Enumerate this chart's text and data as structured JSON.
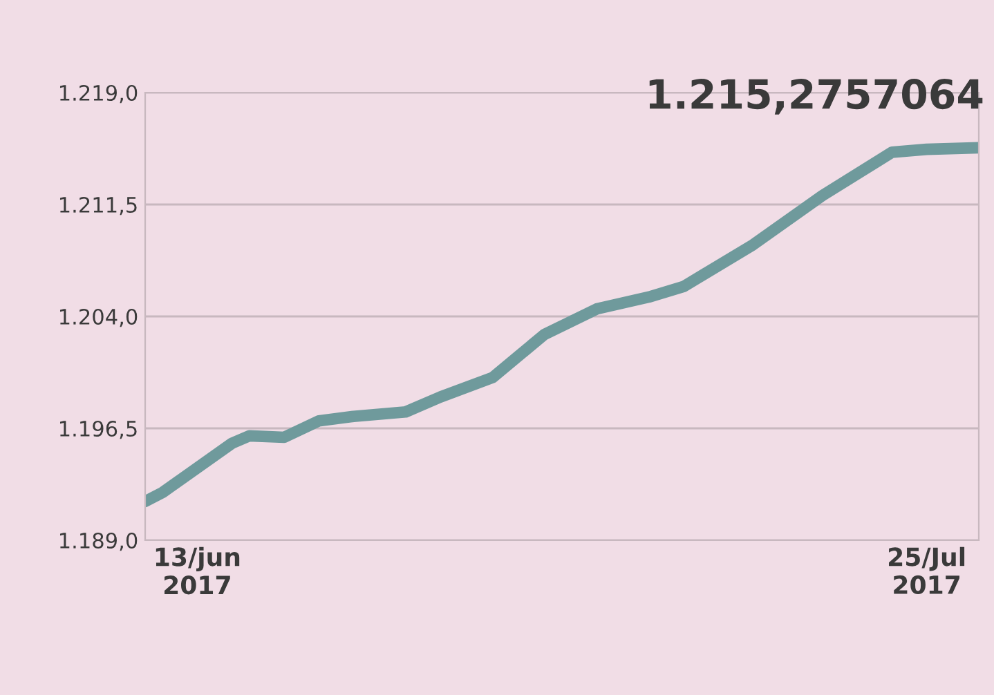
{
  "chart_data": {
    "type": "line",
    "x": [
      "2017-06-10",
      "2017-06-11",
      "2017-06-15",
      "2017-06-16",
      "2017-06-18",
      "2017-06-20",
      "2017-06-22",
      "2017-06-25",
      "2017-06-27",
      "2017-06-30",
      "2017-07-03",
      "2017-07-06",
      "2017-07-09",
      "2017-07-11",
      "2017-07-15",
      "2017-07-19",
      "2017-07-23",
      "2017-07-25",
      "2017-07-28"
    ],
    "series": [
      {
        "color": "#6f9a9c",
        "values": [
          1191.6,
          1192.2,
          1195.5,
          1196.0,
          1195.9,
          1197.0,
          1197.3,
          1197.6,
          1198.6,
          1199.9,
          1202.8,
          1204.5,
          1205.3,
          1206.0,
          1208.8,
          1212.1,
          1215.0,
          1215.2,
          1215.3
        ]
      }
    ],
    "xlim": [
      "2017-06-10",
      "2017-07-28"
    ],
    "xticks": [
      {
        "value": "2017-06-13",
        "label": "13/jun\n2017"
      },
      {
        "value": "2017-07-25",
        "label": "25/Jul\n2017"
      }
    ],
    "ylim": [
      1189.0,
      1219.0
    ],
    "yticks": [
      {
        "value": 1189.0,
        "label": "1.189,0"
      },
      {
        "value": 1196.5,
        "label": "1.196,5"
      },
      {
        "value": 1204.0,
        "label": "1.204,0"
      },
      {
        "value": 1211.5,
        "label": "1.211,5"
      },
      {
        "value": 1219.0,
        "label": "1.219,0"
      }
    ],
    "grid": "y",
    "annotations": [
      {
        "text": "1.215,2757064",
        "x": "2017-07-25",
        "y": 1215.3
      }
    ]
  }
}
